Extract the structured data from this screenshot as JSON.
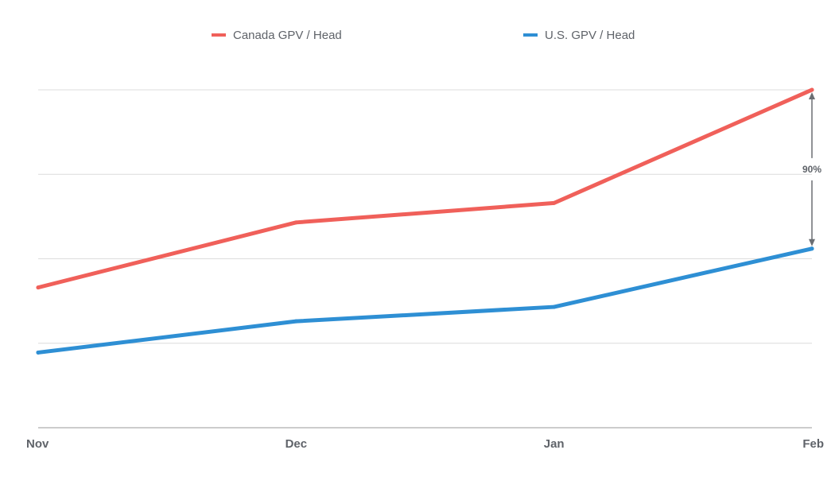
{
  "chart_data": {
    "type": "line",
    "categories": [
      "Nov",
      "Dec",
      "Jan",
      "Feb"
    ],
    "series": [
      {
        "name": "Canada GPV / Head",
        "color": "#f0605a",
        "values": [
          1.66,
          2.43,
          2.66,
          4.0
        ]
      },
      {
        "name": "U.S. GPV / Head",
        "color": "#2e8fd4",
        "values": [
          0.89,
          1.26,
          1.43,
          2.12
        ]
      }
    ],
    "ylim": [
      0,
      4
    ],
    "grid": true,
    "legend_position": "top",
    "annotation": {
      "label": "90%",
      "category": "Feb",
      "from": 2.12,
      "to": 4.0
    },
    "title": "",
    "xlabel": "",
    "ylabel": ""
  }
}
